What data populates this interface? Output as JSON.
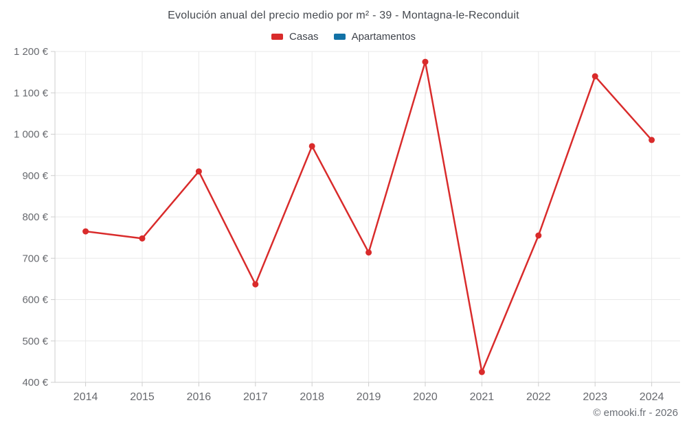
{
  "header": {
    "title": "Evolución anual del precio medio por m² - 39 - Montagna-le-Reconduit"
  },
  "legend": {
    "items": [
      {
        "label": "Casas",
        "color": "#d92b2b"
      },
      {
        "label": "Apartamentos",
        "color": "#1272a6"
      }
    ]
  },
  "footer": {
    "credit": "© emooki.fr - 2026"
  },
  "chart_data": {
    "type": "line",
    "title": "Evolución anual del precio medio por m² - 39 - Montagna-le-Reconduit",
    "categories": [
      "2014",
      "2015",
      "2016",
      "2017",
      "2018",
      "2019",
      "2020",
      "2021",
      "2022",
      "2023",
      "2024"
    ],
    "series": [
      {
        "name": "Casas",
        "color": "#d92b2b",
        "values": [
          765,
          748,
          910,
          637,
          971,
          714,
          1175,
          425,
          755,
          1140,
          986
        ]
      },
      {
        "name": "Apartamentos",
        "color": "#1272a6",
        "values": []
      }
    ],
    "xlabel": "",
    "ylabel": "",
    "ylim": [
      400,
      1200
    ],
    "ytick_step": 100,
    "ytick_labels": [
      "400 €",
      "500 €",
      "600 €",
      "700 €",
      "800 €",
      "900 €",
      "1 000 €",
      "1 100 €",
      "1 200 €"
    ],
    "grid": true,
    "legend_position": "top",
    "currency_suffix": " €"
  }
}
